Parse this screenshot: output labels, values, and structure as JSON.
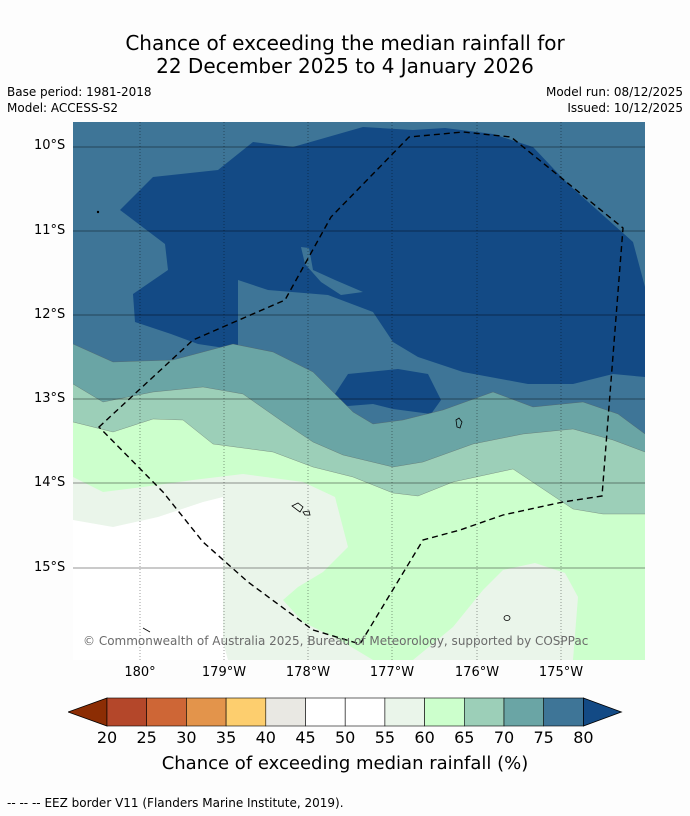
{
  "header": {
    "title_line1": "Chance of exceeding the median rainfall for",
    "title_line2": "22 December 2025 to 4 January 2026",
    "base_period": "Base period: 1981-2018",
    "model": "Model: ACCESS-S2",
    "model_run": "Model run: 08/12/2025",
    "issued": "Issued: 10/12/2025"
  },
  "map": {
    "lat_labels": [
      "10°S",
      "11°S",
      "12°S",
      "13°S",
      "14°S",
      "15°S"
    ],
    "lon_labels": [
      "180°",
      "179°W",
      "178°W",
      "177°W",
      "176°W",
      "175°W"
    ],
    "attribution": "© Commonwealth of Australia 2025, Bureau of Meteorology, supported by COSPPac"
  },
  "colorbar": {
    "ticks": [
      "20",
      "25",
      "30",
      "35",
      "40",
      "45",
      "50",
      "55",
      "60",
      "65",
      "70",
      "75",
      "80"
    ],
    "label": "Chance of exceeding median rainfall (%)",
    "colors": [
      "#8c2d04",
      "#b4472a",
      "#ce6636",
      "#e3944b",
      "#fdce6e",
      "#e9e8e3",
      "#ffffff",
      "#ffffff",
      "#eaf5ea",
      "#ccffcc",
      "#9ccfb8",
      "#6aa5a5",
      "#3e7597",
      "#134a85"
    ]
  },
  "legend": {
    "eez_symbol": "--  --  --",
    "eez_text": "EEZ border V11 (Flanders Marine Institute, 2019)."
  }
}
